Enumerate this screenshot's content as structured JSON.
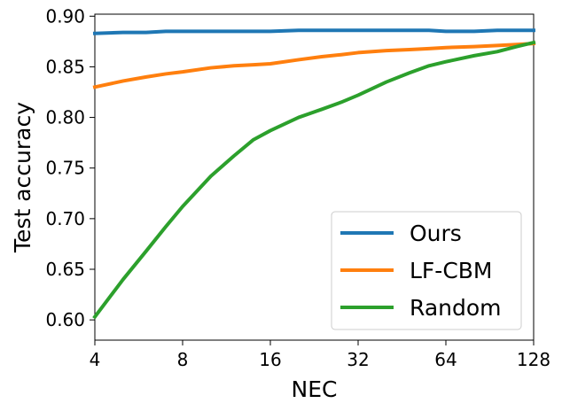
{
  "chart_data": {
    "type": "line",
    "title": "",
    "xlabel": "NEC",
    "ylabel": "Test accuracy",
    "x_scale": "log2",
    "xlim": [
      4,
      128
    ],
    "ylim": [
      0.58,
      0.902
    ],
    "x_ticks": [
      4,
      8,
      16,
      32,
      64,
      128
    ],
    "x_tick_labels": [
      "4",
      "8",
      "16",
      "32",
      "64",
      "128"
    ],
    "y_ticks": [
      0.6,
      0.65,
      0.7,
      0.75,
      0.8,
      0.85,
      0.9
    ],
    "y_tick_labels": [
      "0.60",
      "0.65",
      "0.70",
      "0.75",
      "0.80",
      "0.85",
      "0.90"
    ],
    "grid": false,
    "legend_position": "lower-right",
    "x": [
      4,
      5,
      6,
      7,
      8,
      10,
      12,
      14,
      16,
      20,
      24,
      28,
      32,
      40,
      48,
      56,
      64,
      80,
      96,
      112,
      128
    ],
    "series": [
      {
        "name": "Ours",
        "color": "#1f77b4",
        "values": [
          0.883,
          0.884,
          0.884,
          0.885,
          0.885,
          0.885,
          0.885,
          0.885,
          0.885,
          0.886,
          0.886,
          0.886,
          0.886,
          0.886,
          0.886,
          0.886,
          0.885,
          0.885,
          0.886,
          0.886,
          0.886
        ]
      },
      {
        "name": "LF-CBM",
        "color": "#ff7f0e",
        "values": [
          0.83,
          0.836,
          0.84,
          0.843,
          0.845,
          0.849,
          0.851,
          0.852,
          0.853,
          0.857,
          0.86,
          0.862,
          0.864,
          0.866,
          0.867,
          0.868,
          0.869,
          0.87,
          0.871,
          0.872,
          0.873
        ]
      },
      {
        "name": "Random",
        "color": "#2ca02c",
        "values": [
          0.603,
          0.64,
          0.668,
          0.692,
          0.712,
          0.742,
          0.762,
          0.778,
          0.787,
          0.8,
          0.808,
          0.815,
          0.822,
          0.835,
          0.844,
          0.851,
          0.855,
          0.861,
          0.865,
          0.87,
          0.874
        ]
      }
    ]
  }
}
